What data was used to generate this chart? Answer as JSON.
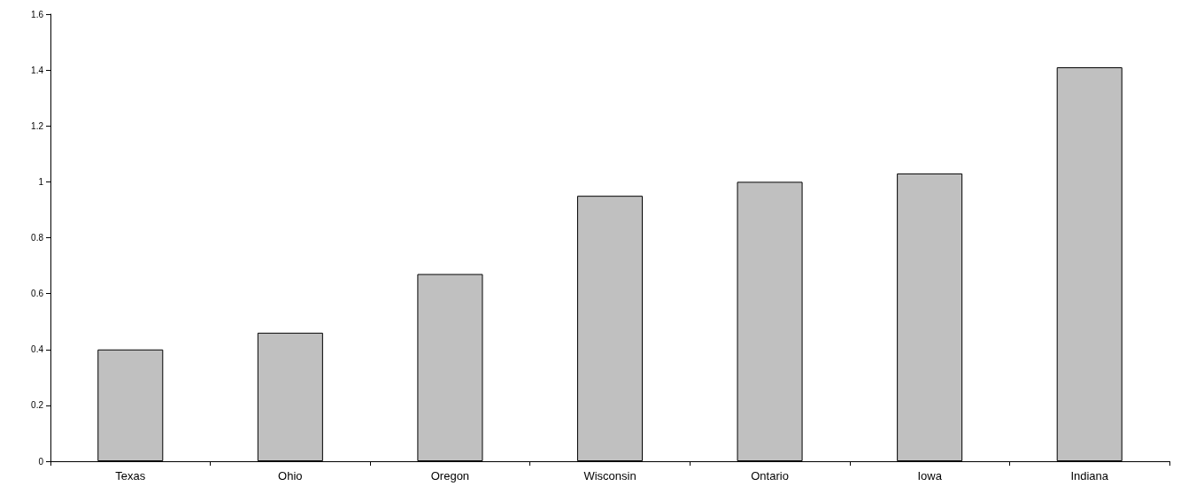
{
  "chart_data": {
    "type": "bar",
    "categories": [
      "Texas",
      "Ohio",
      "Oregon",
      "Wisconsin",
      "Ontario",
      "Iowa",
      "Indiana"
    ],
    "values": [
      0.4,
      0.46,
      0.67,
      0.95,
      1.0,
      1.03,
      1.41
    ],
    "color": "#c0c0c0",
    "ylim": [
      0,
      1.6
    ],
    "yticks": [
      0,
      0.2,
      0.4,
      0.6,
      0.8,
      1,
      1.2,
      1.4,
      1.6
    ],
    "grid": false
  }
}
